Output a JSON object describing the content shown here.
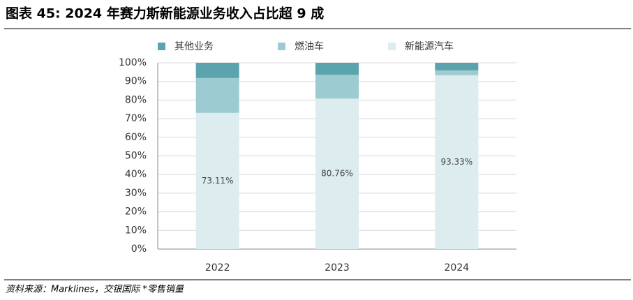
{
  "chart_data": {
    "type": "stacked_bar",
    "title": "图表 45: 2024 年赛力斯新能源业务收入占比超 9 成",
    "source": "资料来源：Marklines，交银国际 *零售销量",
    "categories": [
      "2022",
      "2023",
      "2024"
    ],
    "series": [
      {
        "name": "新能源汽车",
        "color": "#dcecef",
        "values": [
          73.11,
          80.76,
          93.33
        ],
        "value_labels": [
          "73.11%",
          "80.76%",
          "93.33%"
        ]
      },
      {
        "name": "燃油车",
        "color": "#9ccbd1",
        "values": [
          18.7,
          12.8,
          2.6
        ]
      },
      {
        "name": "其他业务",
        "color": "#5ba3ad",
        "values": [
          8.19,
          6.44,
          4.07
        ]
      }
    ],
    "legend_order": [
      2,
      1,
      0
    ],
    "ylim": [
      0,
      100
    ],
    "yticks": [
      {
        "value": 0,
        "label": "0%"
      },
      {
        "value": 10,
        "label": "10%"
      },
      {
        "value": 20,
        "label": "20%"
      },
      {
        "value": 30,
        "label": "30%"
      },
      {
        "value": 40,
        "label": "40%"
      },
      {
        "value": 50,
        "label": "50%"
      },
      {
        "value": 60,
        "label": "60%"
      },
      {
        "value": 70,
        "label": "70%"
      },
      {
        "value": 80,
        "label": "80%"
      },
      {
        "value": 90,
        "label": "90%"
      },
      {
        "value": 100,
        "label": "100%"
      }
    ],
    "grid": true
  }
}
